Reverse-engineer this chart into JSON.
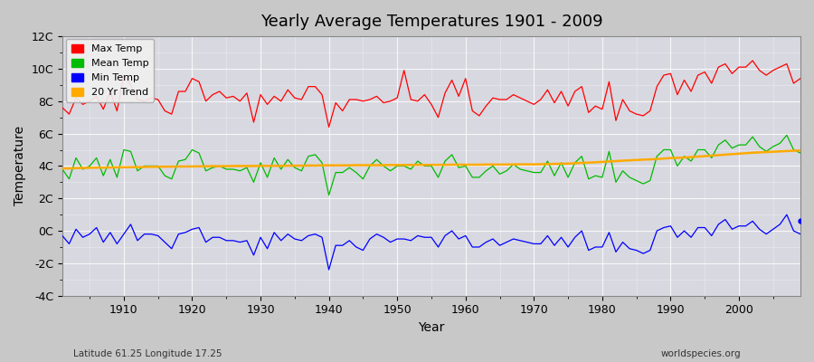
{
  "title": "Yearly Average Temperatures 1901 - 2009",
  "xlabel": "Year",
  "ylabel": "Temperature",
  "lat_lon_label": "Latitude 61.25 Longitude 17.25",
  "credit": "worldspecies.org",
  "ylim": [
    -4,
    12
  ],
  "yticks": [
    -4,
    -2,
    0,
    2,
    4,
    6,
    8,
    10,
    12
  ],
  "ytick_labels": [
    "-4C",
    "-2C",
    "0C",
    "2C",
    "4C",
    "6C",
    "8C",
    "10C",
    "12C"
  ],
  "years": [
    1901,
    1902,
    1903,
    1904,
    1905,
    1906,
    1907,
    1908,
    1909,
    1910,
    1911,
    1912,
    1913,
    1914,
    1915,
    1916,
    1917,
    1918,
    1919,
    1920,
    1921,
    1922,
    1923,
    1924,
    1925,
    1926,
    1927,
    1928,
    1929,
    1930,
    1931,
    1932,
    1933,
    1934,
    1935,
    1936,
    1937,
    1938,
    1939,
    1940,
    1941,
    1942,
    1943,
    1944,
    1945,
    1946,
    1947,
    1948,
    1949,
    1950,
    1951,
    1952,
    1953,
    1954,
    1955,
    1956,
    1957,
    1958,
    1959,
    1960,
    1961,
    1962,
    1963,
    1964,
    1965,
    1966,
    1967,
    1968,
    1969,
    1970,
    1971,
    1972,
    1973,
    1974,
    1975,
    1976,
    1977,
    1978,
    1979,
    1980,
    1981,
    1982,
    1983,
    1984,
    1985,
    1986,
    1987,
    1988,
    1989,
    1990,
    1991,
    1992,
    1993,
    1994,
    1995,
    1996,
    1997,
    1998,
    1999,
    2000,
    2001,
    2002,
    2003,
    2004,
    2005,
    2006,
    2007,
    2008,
    2009
  ],
  "max_temp": [
    7.6,
    7.2,
    8.2,
    7.8,
    8.0,
    8.3,
    7.5,
    8.6,
    7.4,
    9.6,
    9.0,
    8.1,
    8.0,
    8.2,
    8.1,
    7.4,
    7.2,
    8.6,
    8.6,
    9.4,
    9.2,
    8.0,
    8.4,
    8.6,
    8.2,
    8.3,
    8.0,
    8.5,
    6.7,
    8.4,
    7.8,
    8.3,
    8.0,
    8.7,
    8.2,
    8.1,
    8.9,
    8.9,
    8.4,
    6.4,
    7.9,
    7.4,
    8.1,
    8.1,
    8.0,
    8.1,
    8.3,
    7.9,
    8.0,
    8.2,
    9.9,
    8.1,
    8.0,
    8.4,
    7.8,
    7.0,
    8.5,
    9.3,
    8.3,
    9.4,
    7.4,
    7.1,
    7.7,
    8.2,
    8.1,
    8.1,
    8.4,
    8.2,
    8.0,
    7.8,
    8.1,
    8.7,
    7.9,
    8.6,
    7.7,
    8.6,
    8.9,
    7.3,
    7.7,
    7.5,
    9.2,
    6.8,
    8.1,
    7.4,
    7.2,
    7.1,
    7.4,
    8.9,
    9.6,
    9.7,
    8.4,
    9.3,
    8.6,
    9.6,
    9.8,
    9.1,
    10.1,
    10.3,
    9.7,
    10.1,
    10.1,
    10.5,
    9.9,
    9.6,
    9.9,
    10.1,
    10.3,
    9.1,
    9.4
  ],
  "mean_temp": [
    3.8,
    3.2,
    4.5,
    3.8,
    4.0,
    4.5,
    3.4,
    4.4,
    3.3,
    5.0,
    4.9,
    3.7,
    4.0,
    4.0,
    4.0,
    3.4,
    3.2,
    4.3,
    4.4,
    5.0,
    4.8,
    3.7,
    3.9,
    4.0,
    3.8,
    3.8,
    3.7,
    3.9,
    3.0,
    4.2,
    3.3,
    4.5,
    3.8,
    4.4,
    3.9,
    3.7,
    4.6,
    4.7,
    4.2,
    2.2,
    3.6,
    3.6,
    3.9,
    3.6,
    3.2,
    4.0,
    4.4,
    4.0,
    3.7,
    4.0,
    4.0,
    3.8,
    4.3,
    4.0,
    4.0,
    3.3,
    4.3,
    4.7,
    3.9,
    4.0,
    3.3,
    3.3,
    3.7,
    4.0,
    3.5,
    3.7,
    4.1,
    3.8,
    3.7,
    3.6,
    3.6,
    4.3,
    3.4,
    4.2,
    3.3,
    4.2,
    4.6,
    3.2,
    3.4,
    3.3,
    4.9,
    3.0,
    3.7,
    3.3,
    3.1,
    2.9,
    3.1,
    4.6,
    5.0,
    5.0,
    4.0,
    4.6,
    4.3,
    5.0,
    5.0,
    4.5,
    5.3,
    5.6,
    5.1,
    5.3,
    5.3,
    5.8,
    5.2,
    4.9,
    5.2,
    5.4,
    5.9,
    5.0,
    4.8
  ],
  "min_temp": [
    -0.3,
    -0.8,
    0.1,
    -0.4,
    -0.2,
    0.2,
    -0.7,
    -0.1,
    -0.8,
    -0.2,
    0.4,
    -0.6,
    -0.2,
    -0.2,
    -0.3,
    -0.7,
    -1.1,
    -0.2,
    -0.1,
    0.1,
    0.2,
    -0.7,
    -0.4,
    -0.4,
    -0.6,
    -0.6,
    -0.7,
    -0.6,
    -1.5,
    -0.4,
    -1.1,
    -0.1,
    -0.6,
    -0.2,
    -0.5,
    -0.6,
    -0.3,
    -0.2,
    -0.4,
    -2.4,
    -0.9,
    -0.9,
    -0.6,
    -1.0,
    -1.2,
    -0.5,
    -0.2,
    -0.4,
    -0.7,
    -0.5,
    -0.5,
    -0.6,
    -0.3,
    -0.4,
    -0.4,
    -1.0,
    -0.3,
    0.0,
    -0.5,
    -0.3,
    -1.0,
    -1.0,
    -0.7,
    -0.5,
    -0.9,
    -0.7,
    -0.5,
    -0.6,
    -0.7,
    -0.8,
    -0.8,
    -0.3,
    -0.9,
    -0.4,
    -1.0,
    -0.4,
    0.0,
    -1.2,
    -1.0,
    -1.0,
    -0.1,
    -1.3,
    -0.7,
    -1.1,
    -1.2,
    -1.4,
    -1.2,
    0.0,
    0.2,
    0.3,
    -0.4,
    0.0,
    -0.4,
    0.2,
    0.2,
    -0.3,
    0.4,
    0.7,
    0.1,
    0.3,
    0.3,
    0.6,
    0.1,
    -0.2,
    0.1,
    0.4,
    1.0,
    0.0,
    -0.2
  ],
  "trend_values": [
    3.85,
    3.85,
    3.87,
    3.88,
    3.89,
    3.9,
    3.9,
    3.91,
    3.92,
    3.92,
    3.93,
    3.93,
    3.94,
    3.95,
    3.95,
    3.96,
    3.96,
    3.97,
    3.97,
    3.97,
    3.98,
    3.98,
    3.99,
    3.99,
    3.99,
    4.0,
    4.0,
    4.0,
    4.0,
    4.01,
    4.01,
    4.01,
    4.01,
    4.02,
    4.02,
    4.02,
    4.03,
    4.03,
    4.04,
    4.04,
    4.04,
    4.04,
    4.04,
    4.05,
    4.05,
    4.05,
    4.05,
    4.05,
    4.06,
    4.06,
    4.06,
    4.06,
    4.07,
    4.07,
    4.07,
    4.07,
    4.07,
    4.08,
    4.08,
    4.08,
    4.08,
    4.08,
    4.09,
    4.09,
    4.09,
    4.09,
    4.1,
    4.1,
    4.1,
    4.1,
    4.11,
    4.12,
    4.13,
    4.14,
    4.15,
    4.17,
    4.19,
    4.21,
    4.23,
    4.25,
    4.28,
    4.3,
    4.33,
    4.35,
    4.37,
    4.39,
    4.41,
    4.43,
    4.46,
    4.49,
    4.5,
    4.52,
    4.55,
    4.58,
    4.61,
    4.64,
    4.67,
    4.7,
    4.73,
    4.76,
    4.79,
    4.82,
    4.84,
    4.86,
    4.88,
    4.9,
    4.92,
    4.94,
    4.96
  ],
  "last_dot_year": 2009,
  "last_dot_value": 0.6,
  "colors": {
    "max_temp": "#ff0000",
    "mean_temp": "#00bb00",
    "min_temp": "#0000ff",
    "trend": "#ffaa00",
    "fig_bg": "#c8c8c8",
    "plot_bg": "#d8d8e0",
    "grid_color": "#ffffff"
  },
  "legend": {
    "max_label": "Max Temp",
    "mean_label": "Mean Temp",
    "min_label": "Min Temp",
    "trend_label": "20 Yr Trend"
  },
  "title_fontsize": 13,
  "axis_fontsize": 9,
  "xlabel_fontsize": 10,
  "ylabel_fontsize": 10
}
